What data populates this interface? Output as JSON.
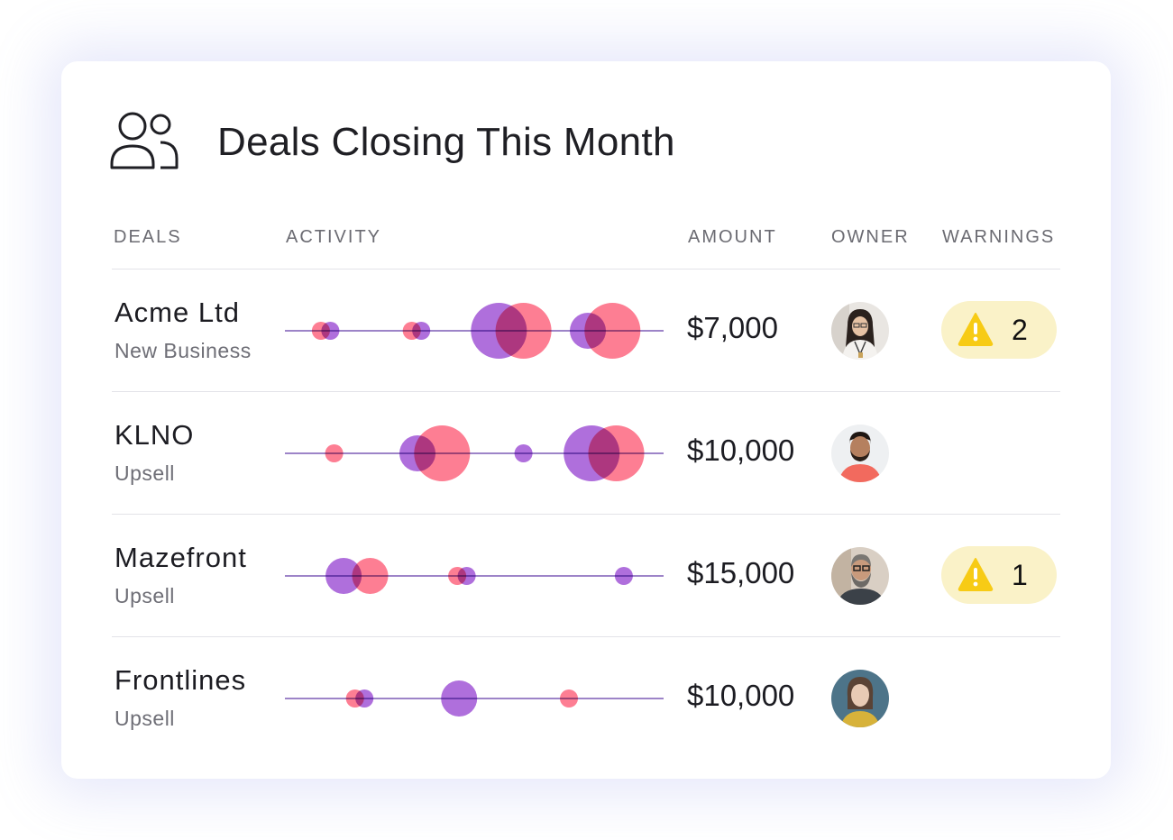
{
  "header": {
    "title": "Deals Closing This Month",
    "icon": "people-icon"
  },
  "columns": {
    "deals": "DEALS",
    "activity": "ACTIVITY",
    "amount": "AMOUNT",
    "owner": "OWNER",
    "warnings": "WARNINGS"
  },
  "colors": {
    "purple": "#9d4fd4",
    "pink": "#fd5a74",
    "line": "#9d84c8",
    "warning_bg": "#faf2c8",
    "warning_icon": "#f7cb15"
  },
  "rows": [
    {
      "name": "Acme Ltd",
      "type": "New Business",
      "amount": "$7,000",
      "warnings": "2",
      "activity": [
        {
          "color": "pink",
          "pos": 0.095,
          "size": "small"
        },
        {
          "color": "purple",
          "pos": 0.12,
          "size": "small"
        },
        {
          "color": "pink",
          "pos": 0.335,
          "size": "small"
        },
        {
          "color": "purple",
          "pos": 0.36,
          "size": "small"
        },
        {
          "color": "purple",
          "pos": 0.565,
          "size": "large"
        },
        {
          "color": "pink",
          "pos": 0.63,
          "size": "large"
        },
        {
          "color": "purple",
          "pos": 0.8,
          "size": "medium"
        },
        {
          "color": "pink",
          "pos": 0.865,
          "size": "large"
        }
      ]
    },
    {
      "name": "KLNO",
      "type": "Upsell",
      "amount": "$10,000",
      "warnings": "",
      "activity": [
        {
          "color": "pink",
          "pos": 0.13,
          "size": "small"
        },
        {
          "color": "purple",
          "pos": 0.35,
          "size": "medium"
        },
        {
          "color": "pink",
          "pos": 0.415,
          "size": "large"
        },
        {
          "color": "purple",
          "pos": 0.63,
          "size": "small"
        },
        {
          "color": "purple",
          "pos": 0.81,
          "size": "large"
        },
        {
          "color": "pink",
          "pos": 0.875,
          "size": "large"
        }
      ]
    },
    {
      "name": "Mazefront",
      "type": "Upsell",
      "amount": "$15,000",
      "warnings": "1",
      "activity": [
        {
          "color": "purple",
          "pos": 0.155,
          "size": "medium"
        },
        {
          "color": "pink",
          "pos": 0.225,
          "size": "medium"
        },
        {
          "color": "pink",
          "pos": 0.455,
          "size": "small"
        },
        {
          "color": "purple",
          "pos": 0.48,
          "size": "small"
        },
        {
          "color": "purple",
          "pos": 0.895,
          "size": "small"
        }
      ]
    },
    {
      "name": "Frontlines",
      "type": "Upsell",
      "amount": "$10,000",
      "warnings": "",
      "activity": [
        {
          "color": "pink",
          "pos": 0.185,
          "size": "small"
        },
        {
          "color": "purple",
          "pos": 0.21,
          "size": "small"
        },
        {
          "color": "purple",
          "pos": 0.46,
          "size": "medium"
        },
        {
          "color": "pink",
          "pos": 0.75,
          "size": "small"
        }
      ]
    }
  ],
  "avatars": [
    "woman-with-glasses-avatar",
    "man-red-shirt-avatar",
    "bearded-man-avatar",
    "woman-yellow-avatar"
  ]
}
